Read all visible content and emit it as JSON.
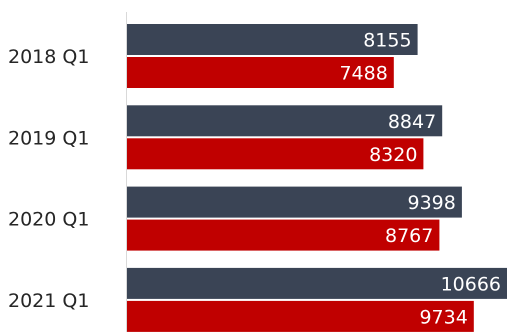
{
  "chart_data": {
    "type": "bar",
    "orientation": "horizontal",
    "categories": [
      "2018 Q1",
      "2019 Q1",
      "2020 Q1",
      "2021 Q1"
    ],
    "series": [
      {
        "values": [
          8155,
          8847,
          9398,
          10666
        ],
        "color": "#3a4455"
      },
      {
        "values": [
          7488,
          8320,
          8767,
          9734
        ],
        "color": "#c00000"
      }
    ],
    "data_labels": true,
    "xlim": [
      0,
      10800
    ],
    "axis_visible": false,
    "legend": "none",
    "grid": false
  }
}
